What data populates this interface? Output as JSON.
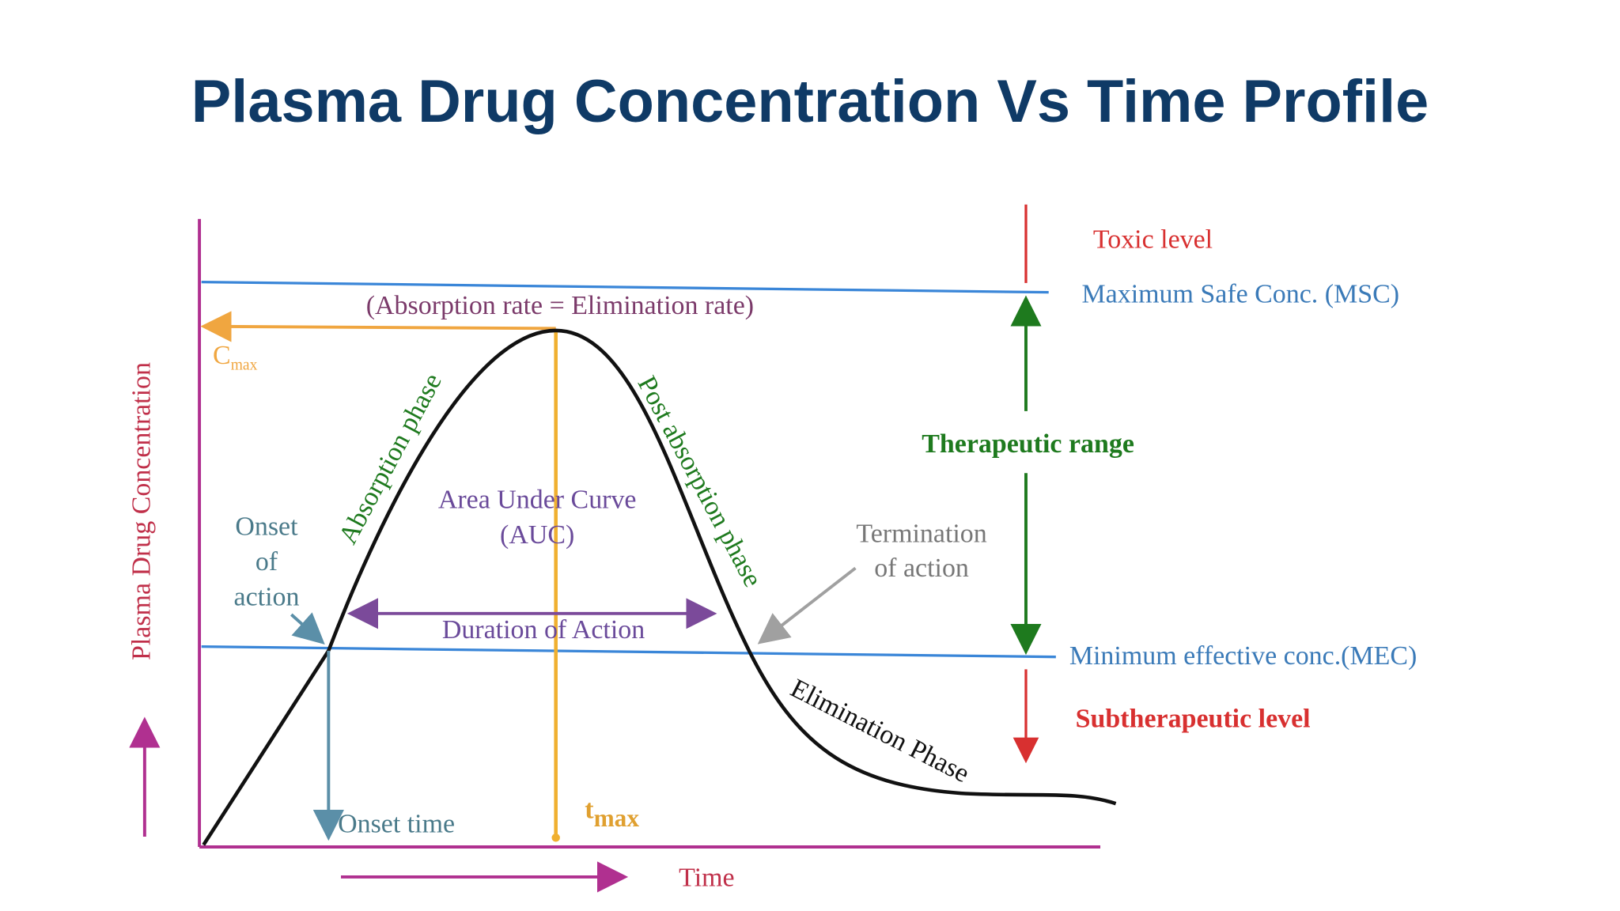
{
  "title": "Plasma Drug Concentration Vs Time Profile",
  "axes": {
    "y_label": "Plasma Drug Concentration",
    "x_label": "Time"
  },
  "levels": {
    "toxic": "Toxic level",
    "msc": "Maximum Safe Conc. (MSC)",
    "therapeutic": "Therapeutic range",
    "mec": "Minimum effective conc.(MEC)",
    "subtherapeutic": "Subtherapeutic level"
  },
  "annotations": {
    "equilibrium": "(Absorption rate = Elimination rate)",
    "cmax": {
      "base": "C",
      "sub": "max"
    },
    "tmax": {
      "base": "t",
      "sub": "max"
    },
    "absorption_phase": "Absorption phase",
    "post_absorption_phase": "Post absorption phase",
    "elimination_phase": "Elimination Phase",
    "auc": [
      "Area Under Curve",
      "(AUC)"
    ],
    "onset_of_action": [
      "Onset",
      "of",
      "action"
    ],
    "duration_of_action": "Duration of Action",
    "termination_of_action": [
      "Termination",
      "of action"
    ],
    "onset_time": "Onset time"
  }
}
